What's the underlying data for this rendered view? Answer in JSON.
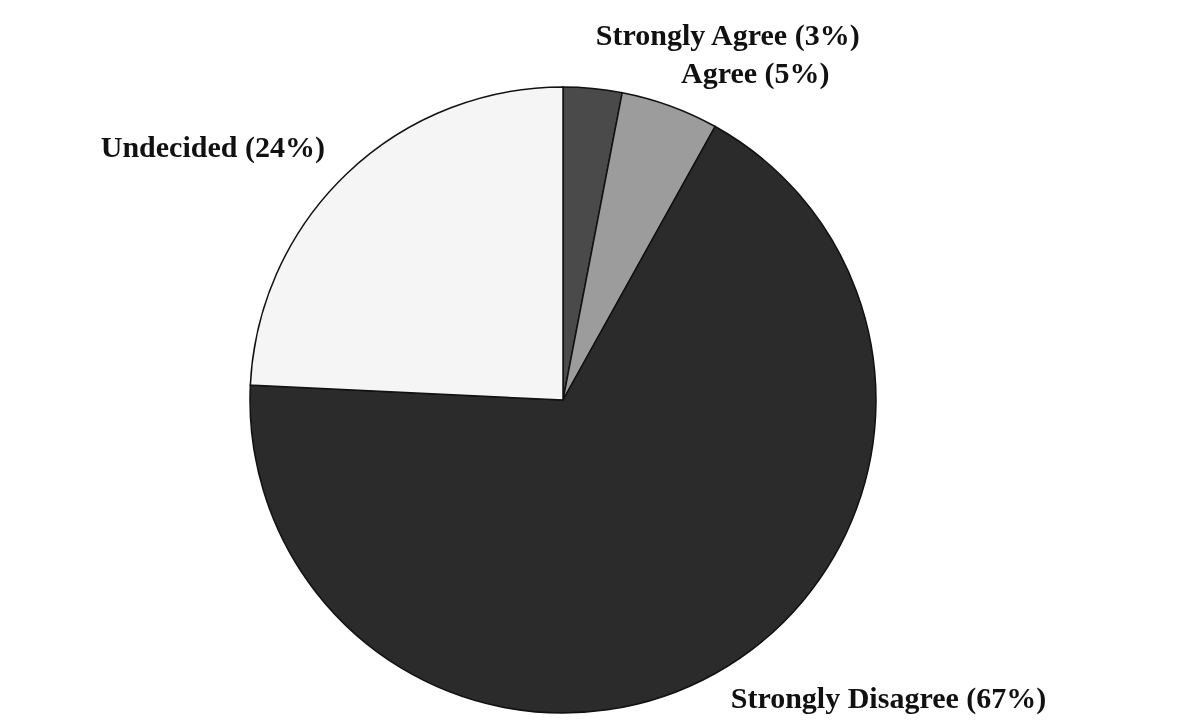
{
  "chart_data": {
    "type": "pie",
    "categories": [
      "Strongly Agree (3%)",
      "Agree (5%)",
      "Strongly Disagree (67%)",
      "Undecided (24%)"
    ],
    "values": [
      3,
      5,
      67,
      24
    ],
    "colors": [
      "#4a4a4a",
      "#9c9c9c",
      "#2b2b2b",
      "#f5f5f5"
    ]
  }
}
